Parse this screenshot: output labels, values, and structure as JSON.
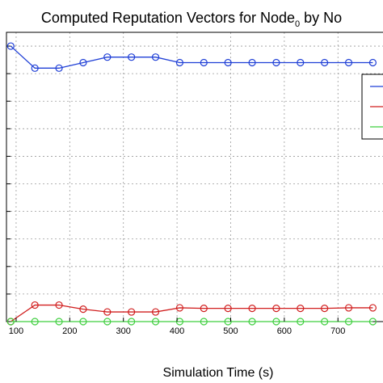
{
  "chart_data": {
    "type": "line",
    "title": {
      "before": "Computed Reputation Vectors for Node",
      "subscript": "0",
      "after": " by No"
    },
    "xlabel": "Simulation Time (s)",
    "ylabel": "",
    "xlim": [
      82,
      790
    ],
    "ylim": [
      0,
      1.05
    ],
    "x_ticks": [
      100,
      200,
      300,
      400,
      500,
      600,
      700
    ],
    "y_gridlines": [
      0,
      0.1,
      0.2,
      0.3,
      0.4,
      0.5,
      0.6,
      0.7,
      0.8,
      0.9,
      1.0
    ],
    "grid": true,
    "legend": "right",
    "x": [
      90,
      135,
      180,
      225,
      270,
      315,
      360,
      405,
      450,
      495,
      540,
      585,
      630,
      675,
      720,
      765
    ],
    "series": [
      {
        "color": "#1f3fd6",
        "values": [
          1.0,
          0.92,
          0.92,
          0.94,
          0.96,
          0.96,
          0.96,
          0.94,
          0.94,
          0.94,
          0.94,
          0.94,
          0.94,
          0.94,
          0.94,
          0.94
        ]
      },
      {
        "color": "#d11f1f",
        "values": [
          0.0,
          0.06,
          0.06,
          0.045,
          0.035,
          0.035,
          0.035,
          0.05,
          0.048,
          0.048,
          0.048,
          0.048,
          0.048,
          0.048,
          0.05,
          0.05
        ]
      },
      {
        "color": "#3fcf3f",
        "values": [
          0.0,
          0.0,
          0.0,
          0.0,
          0.0,
          0.0,
          0.0,
          0.0,
          0.0,
          0.0,
          0.0,
          0.0,
          0.0,
          0.0,
          0.0,
          0.0
        ]
      }
    ]
  }
}
